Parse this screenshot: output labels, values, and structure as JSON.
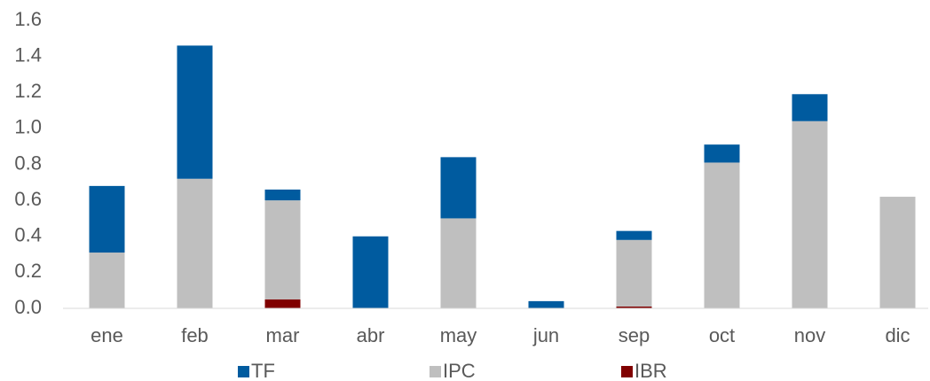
{
  "chart_data": {
    "type": "stacked_bar",
    "categories": [
      "ene",
      "feb",
      "mar",
      "abr",
      "may",
      "jun",
      "sep",
      "oct",
      "nov",
      "dic"
    ],
    "series": [
      {
        "name": "IBR",
        "color": "#800000",
        "values": [
          0,
          0,
          0.05,
          0,
          0,
          0,
          0.01,
          0,
          0,
          0
        ]
      },
      {
        "name": "IPC",
        "color": "#bfbfbf",
        "values": [
          0.31,
          0.72,
          0.55,
          0,
          0.5,
          0,
          0.37,
          0.81,
          1.04,
          0.62
        ]
      },
      {
        "name": "TF",
        "color": "#005b9f",
        "values": [
          0.37,
          0.74,
          0.06,
          0.4,
          0.34,
          0.04,
          0.05,
          0.1,
          0.15,
          0
        ]
      }
    ],
    "legend_order": [
      "TF",
      "IPC",
      "IBR"
    ],
    "ylim": [
      0,
      1.6
    ],
    "yticks": [
      {
        "value": 0,
        "label": "0.0"
      },
      0.2,
      0.4,
      0.6,
      0.8,
      {
        "value": 1,
        "label": "1.0"
      },
      1.2,
      1.4,
      1.6
    ],
    "grid": false
  }
}
